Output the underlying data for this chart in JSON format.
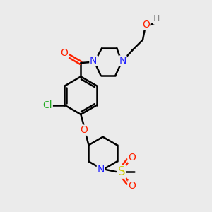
{
  "bg_color": "#ebebeb",
  "atom_colors": {
    "C": "#000000",
    "N": "#2222ff",
    "O": "#ff2200",
    "Cl": "#22aa22",
    "S": "#cccc00",
    "H": "#888888"
  },
  "bond_color": "#000000",
  "bond_width": 1.8,
  "font_size": 10,
  "fig_size": [
    3.0,
    3.0
  ],
  "dpi": 100
}
